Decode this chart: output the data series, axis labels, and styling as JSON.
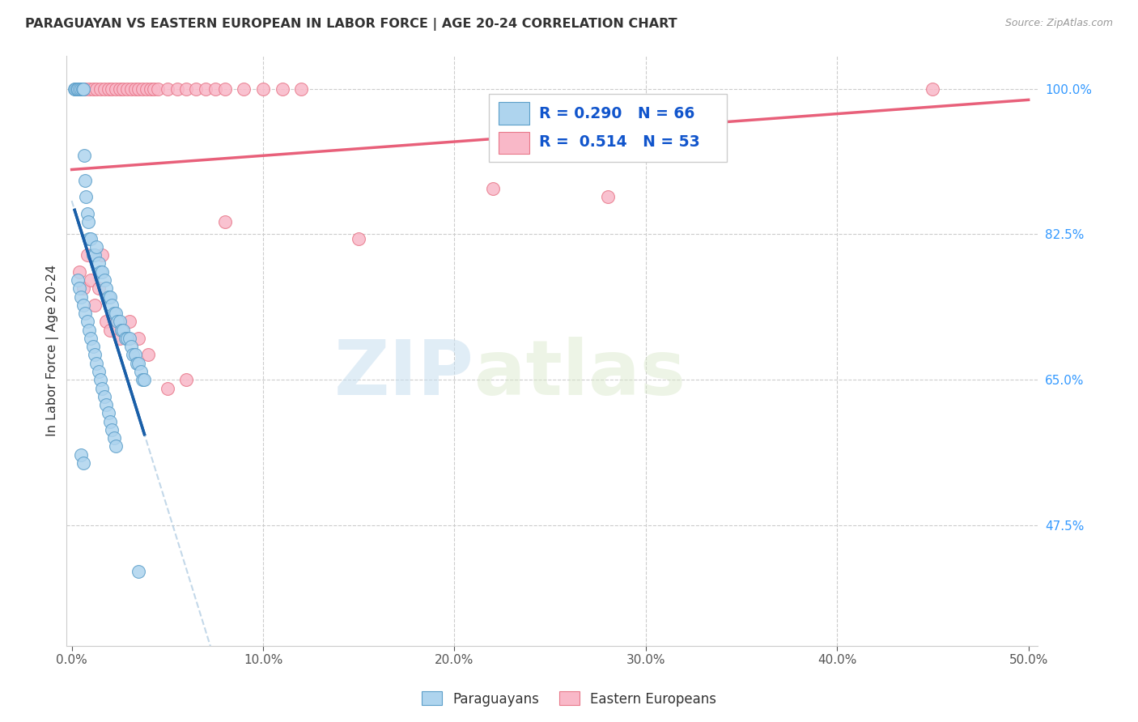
{
  "title": "PARAGUAYAN VS EASTERN EUROPEAN IN LABOR FORCE | AGE 20-24 CORRELATION CHART",
  "source": "Source: ZipAtlas.com",
  "ylabel": "In Labor Force | Age 20-24",
  "xlim": [
    -0.3,
    50.5
  ],
  "ylim": [
    33.0,
    104.0
  ],
  "xticklabels": [
    "0.0%",
    "10.0%",
    "20.0%",
    "30.0%",
    "40.0%",
    "50.0%"
  ],
  "xtickvals": [
    0,
    10,
    20,
    30,
    40,
    50
  ],
  "right_ytick_vals": [
    47.5,
    65.0,
    82.5,
    100.0
  ],
  "right_ytick_labels": [
    "47.5%",
    "65.0%",
    "82.5%",
    "100.0%"
  ],
  "legend_label_blue": "Paraguayans",
  "legend_label_pink": "Eastern Europeans",
  "blue_fill": "#aed4ee",
  "blue_edge": "#5b9ec9",
  "pink_fill": "#f9b8c8",
  "pink_edge": "#e8788a",
  "blue_line_color": "#1a5fa8",
  "blue_dash_color": "#aac8e0",
  "pink_line_color": "#e8607a",
  "watermark_zip": "ZIP",
  "watermark_atlas": "atlas",
  "par_x": [
    0.15,
    0.2,
    0.25,
    0.3,
    0.4,
    0.5,
    0.55,
    0.6,
    0.65,
    0.7,
    0.75,
    0.8,
    0.85,
    0.9,
    1.0,
    1.1,
    1.2,
    1.3,
    1.4,
    1.5,
    1.6,
    1.7,
    1.8,
    1.9,
    2.0,
    2.1,
    2.2,
    2.3,
    2.4,
    2.5,
    2.6,
    2.7,
    2.8,
    2.9,
    3.0,
    3.1,
    3.2,
    3.3,
    3.4,
    3.5,
    3.6,
    3.7,
    3.8,
    0.3,
    0.4,
    0.5,
    0.6,
    0.7,
    0.8,
    0.9,
    1.0,
    1.1,
    1.2,
    1.3,
    1.4,
    1.5,
    1.6,
    1.7,
    1.8,
    1.9,
    2.0,
    2.1,
    2.2,
    2.3,
    0.5,
    0.6,
    3.5
  ],
  "par_y": [
    100.0,
    100.0,
    100.0,
    100.0,
    100.0,
    100.0,
    100.0,
    100.0,
    92.0,
    89.0,
    87.0,
    85.0,
    84.0,
    82.0,
    82.0,
    80.0,
    80.0,
    81.0,
    79.0,
    78.0,
    78.0,
    77.0,
    76.0,
    75.0,
    75.0,
    74.0,
    73.0,
    73.0,
    72.0,
    72.0,
    71.0,
    71.0,
    70.0,
    70.0,
    70.0,
    69.0,
    68.0,
    68.0,
    67.0,
    67.0,
    66.0,
    65.0,
    65.0,
    77.0,
    76.0,
    75.0,
    74.0,
    73.0,
    72.0,
    71.0,
    70.0,
    69.0,
    68.0,
    67.0,
    66.0,
    65.0,
    64.0,
    63.0,
    62.0,
    61.0,
    60.0,
    59.0,
    58.0,
    57.0,
    56.0,
    55.0,
    42.0
  ],
  "ee_x": [
    0.3,
    0.5,
    0.7,
    0.9,
    1.1,
    1.3,
    1.5,
    1.7,
    1.9,
    2.1,
    2.3,
    2.5,
    2.7,
    2.9,
    3.1,
    3.3,
    3.5,
    3.7,
    3.9,
    4.1,
    4.3,
    4.5,
    5.0,
    5.5,
    6.0,
    6.5,
    7.0,
    7.5,
    8.0,
    9.0,
    10.0,
    11.0,
    12.0,
    45.0,
    0.4,
    0.6,
    0.8,
    1.0,
    1.2,
    1.4,
    1.6,
    1.8,
    2.0,
    2.5,
    3.0,
    3.5,
    4.0,
    5.0,
    6.0,
    8.0,
    22.0,
    28.0,
    15.0
  ],
  "ee_y": [
    100.0,
    100.0,
    100.0,
    100.0,
    100.0,
    100.0,
    100.0,
    100.0,
    100.0,
    100.0,
    100.0,
    100.0,
    100.0,
    100.0,
    100.0,
    100.0,
    100.0,
    100.0,
    100.0,
    100.0,
    100.0,
    100.0,
    100.0,
    100.0,
    100.0,
    100.0,
    100.0,
    100.0,
    100.0,
    100.0,
    100.0,
    100.0,
    100.0,
    100.0,
    78.0,
    76.0,
    80.0,
    77.0,
    74.0,
    76.0,
    80.0,
    72.0,
    71.0,
    70.0,
    72.0,
    70.0,
    68.0,
    64.0,
    65.0,
    84.0,
    88.0,
    87.0,
    82.0
  ]
}
